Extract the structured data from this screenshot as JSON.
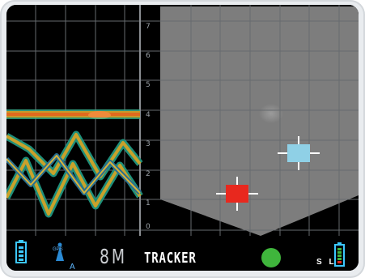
{
  "depth_scale": {
    "ticks": [
      "7",
      "6",
      "5",
      "4",
      "3",
      "2",
      "1",
      "0"
    ]
  },
  "status_bar": {
    "range": "8M",
    "mode": "TRACKER",
    "gps_label": "GPS",
    "antenna_sub": "A",
    "side_label": "S L"
  },
  "targets": [
    {
      "name": "target-red",
      "color": "#e8281e"
    },
    {
      "name": "target-cyan",
      "color": "#8fd0e6"
    }
  ],
  "colors": {
    "accent_green": "#3fb53c",
    "battery_cyan": "#3cc7ff",
    "antenna_blue": "#2a8ad4",
    "sonar_gray": "#7d7d7d",
    "grid": "#666a6e"
  }
}
